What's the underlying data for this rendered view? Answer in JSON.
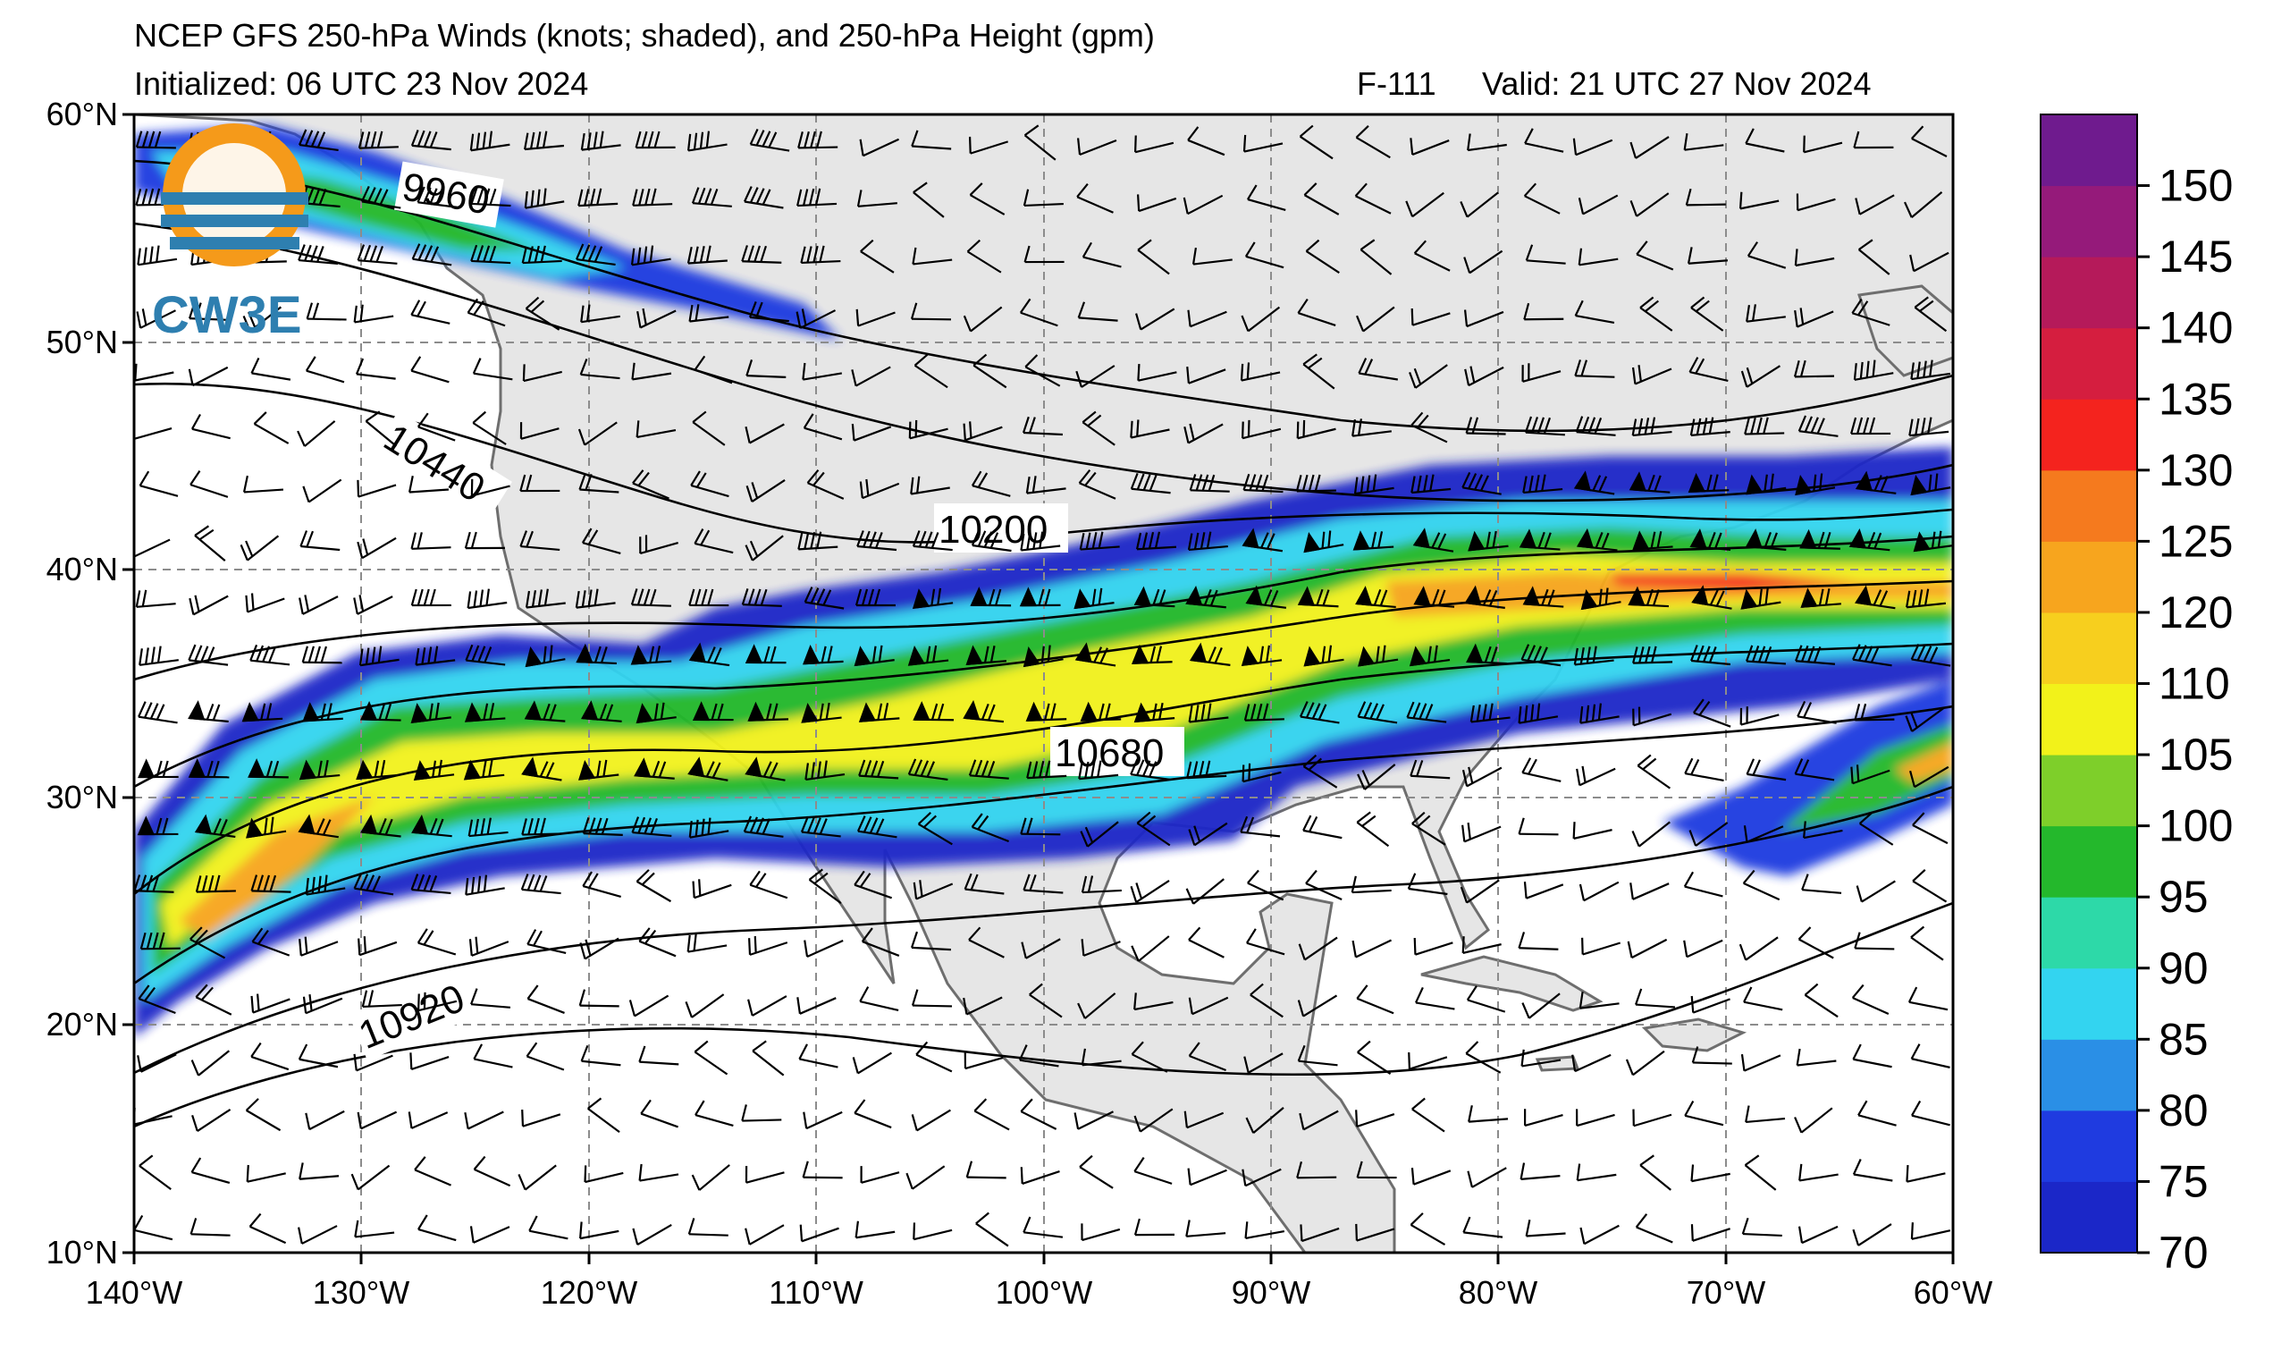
{
  "header": {
    "title": "NCEP GFS 250-hPa Winds (knots; shaded), and 250-hPa Height (gpm)",
    "initialized": "Initialized: 06 UTC 23 Nov 2024",
    "forecast_hour": "F-111",
    "valid": "Valid: 21 UTC 27 Nov 2024"
  },
  "logo": {
    "text": "CW3E"
  },
  "map": {
    "projection": "PlateCarree",
    "lon_range": [
      -140,
      -60
    ],
    "lat_range": [
      10,
      60
    ],
    "lon_ticks": [
      "140°W",
      "130°W",
      "120°W",
      "110°W",
      "100°W",
      "90°W",
      "80°W",
      "70°W",
      "60°W"
    ],
    "lat_ticks": [
      "10°N",
      "20°N",
      "30°N",
      "40°N",
      "50°N",
      "60°N"
    ],
    "gridlines": "dashed gray",
    "land_color": "#e6e6e6",
    "ocean_color": "#ffffff"
  },
  "height_contours": {
    "units": "gpm",
    "labels": [
      "9960",
      "10200",
      "10440",
      "10680",
      "10920"
    ]
  },
  "colorbar": {
    "units": "knots",
    "levels": [
      70,
      75,
      80,
      85,
      90,
      95,
      100,
      105,
      110,
      120,
      125,
      130,
      135,
      140,
      145,
      150
    ],
    "tick_labels": [
      "70",
      "75",
      "80",
      "85",
      "90",
      "95",
      "100",
      "105",
      "110",
      "120",
      "125",
      "130",
      "135",
      "140",
      "145",
      "150"
    ],
    "colors": [
      "#1b27c8",
      "#1f3be0",
      "#2a8fe6",
      "#33d4f0",
      "#2dd9a8",
      "#24b82c",
      "#7ecf2a",
      "#f2f21a",
      "#f7cf1e",
      "#f7a51e",
      "#f57a1e",
      "#f4231e",
      "#d51e3f",
      "#b51a5a",
      "#951a7a",
      "#6f1b8e"
    ]
  },
  "jet_axis_annotations": [
    "jet core over eastern US near 40°N",
    "subtropical jet 25-35°N"
  ]
}
